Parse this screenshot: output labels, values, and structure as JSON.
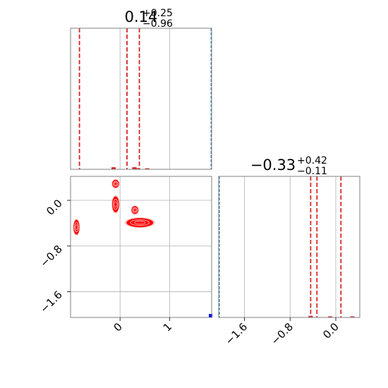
{
  "chart_data": [
    {
      "panel": "histogram-param-1",
      "type": "histogram",
      "title_value": "0.14",
      "title_upper": "+0.25",
      "title_lower": "−0.96",
      "xlim": [
        -1.0,
        1.85
      ],
      "x_gridlines": [
        0,
        1
      ],
      "quantile_lines": [
        -0.82,
        0.14,
        0.39
      ],
      "blue_edge_x": 1.84,
      "bins": [
        {
          "x": -0.13,
          "count": 1.5
        },
        {
          "x": 0.29,
          "count": 1.5
        },
        {
          "x": 0.35,
          "count": 0.8
        },
        {
          "x": 0.55,
          "count": 0.6
        }
      ],
      "hist_max": 100,
      "colors": {
        "quantile": "#d62728",
        "hist": "#d62728",
        "blue": "#1f77b4"
      }
    },
    {
      "panel": "scatter-param-1-vs-param-2",
      "type": "scatter",
      "xlim": [
        -1.0,
        1.85
      ],
      "ylim": [
        -2.05,
        0.42
      ],
      "x_ticks": [
        {
          "value": 0,
          "label": "0"
        },
        {
          "value": 1,
          "label": "1"
        }
      ],
      "y_ticks": [
        {
          "value": 0.0,
          "label": "0.0"
        },
        {
          "value": -0.8,
          "label": "−0.8"
        },
        {
          "value": -1.6,
          "label": "−1.6"
        }
      ],
      "clusters": [
        {
          "x": -0.88,
          "y": -0.47,
          "rx": 0.06,
          "ry": 0.13
        },
        {
          "x": -0.09,
          "y": 0.29,
          "rx": 0.07,
          "ry": 0.07
        },
        {
          "x": -0.09,
          "y": -0.07,
          "rx": 0.07,
          "ry": 0.14
        },
        {
          "x": 0.3,
          "y": -0.17,
          "rx": 0.07,
          "ry": 0.07
        },
        {
          "x": 0.4,
          "y": -0.39,
          "rx": 0.27,
          "ry": 0.08
        }
      ],
      "outlier": {
        "x": 1.83,
        "y": -2.02
      },
      "colors": {
        "cluster": "#ff0000",
        "contour": "#f4a0a0",
        "outlier": "#0000ff"
      }
    },
    {
      "panel": "histogram-param-2",
      "type": "histogram",
      "title_value": "−0.33",
      "title_upper": "+0.42",
      "title_lower": "−0.11",
      "xlim": [
        -2.05,
        0.42
      ],
      "x_ticks": [
        {
          "value": -1.6,
          "label": "−1.6"
        },
        {
          "value": -0.8,
          "label": "−0.8"
        },
        {
          "value": 0.0,
          "label": "0.0"
        }
      ],
      "quantile_lines": [
        -0.44,
        -0.33,
        0.09
      ],
      "blue_edge_x": -2.04,
      "bins": [
        {
          "x": -0.44,
          "count": 1.2
        },
        {
          "x": -0.1,
          "count": 0.8
        },
        {
          "x": 0.29,
          "count": 0.8
        }
      ],
      "hist_max": 100,
      "colors": {
        "quantile": "#d62728",
        "hist": "#d62728",
        "blue": "#1f77b4"
      }
    }
  ]
}
